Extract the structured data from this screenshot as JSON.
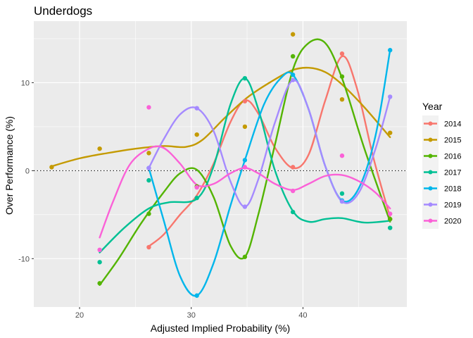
{
  "chart_data": {
    "type": "scatter",
    "title": "Underdogs",
    "xlabel": "Adjusted Implied Probability (%)",
    "ylabel": "Over Performance (%)",
    "xlim": [
      15.9,
      49.3
    ],
    "ylim": [
      -15.5,
      17.0
    ],
    "x_ticks": [
      20,
      30,
      40
    ],
    "y_ticks": [
      -10,
      0,
      10
    ],
    "x_minor_ticks": [
      25,
      35,
      45
    ],
    "y_minor_ticks": [
      -5,
      5,
      15
    ],
    "reference_line": {
      "y": 0,
      "style": "dotted"
    },
    "grid": true,
    "legend": {
      "title": "Year",
      "position": "right"
    },
    "series": [
      {
        "name": "2014",
        "color": "#F8766D",
        "points": [
          [
            26.2,
            -8.7
          ],
          [
            30.5,
            -1.8
          ],
          [
            34.8,
            7.9
          ],
          [
            39.1,
            0.4
          ],
          [
            43.5,
            13.3
          ],
          [
            47.8,
            -5.5
          ]
        ],
        "fit": [
          [
            26.2,
            -8.6
          ],
          [
            27.5,
            -7.3
          ],
          [
            29.0,
            -5.0
          ],
          [
            30.5,
            -2.8
          ],
          [
            32.0,
            0.8
          ],
          [
            33.5,
            5.5
          ],
          [
            34.8,
            8.0
          ],
          [
            36.0,
            6.5
          ],
          [
            37.5,
            2.6
          ],
          [
            39.1,
            0.3
          ],
          [
            40.5,
            1.8
          ],
          [
            42.0,
            8.0
          ],
          [
            43.5,
            13.0
          ],
          [
            44.8,
            9.5
          ],
          [
            46.3,
            1.5
          ],
          [
            47.8,
            -5.3
          ]
        ]
      },
      {
        "name": "2015",
        "color": "#C49A00",
        "points": [
          [
            17.5,
            0.4
          ],
          [
            21.8,
            2.5
          ],
          [
            26.2,
            2.0
          ],
          [
            30.5,
            4.1
          ],
          [
            34.8,
            5.0
          ],
          [
            39.1,
            15.5
          ],
          [
            43.5,
            8.1
          ],
          [
            47.8,
            4.3
          ]
        ],
        "fit": [
          [
            17.5,
            0.5
          ],
          [
            20.0,
            1.4
          ],
          [
            22.5,
            2.0
          ],
          [
            25.0,
            2.5
          ],
          [
            27.5,
            2.8
          ],
          [
            29.5,
            2.7
          ],
          [
            31.0,
            3.5
          ],
          [
            33.0,
            6.0
          ],
          [
            35.0,
            8.3
          ],
          [
            37.0,
            10.0
          ],
          [
            39.0,
            11.4
          ],
          [
            40.5,
            11.7
          ],
          [
            42.0,
            11.2
          ],
          [
            43.5,
            9.8
          ],
          [
            45.5,
            7.2
          ],
          [
            47.8,
            3.8
          ]
        ]
      },
      {
        "name": "2016",
        "color": "#53B400",
        "points": [
          [
            21.8,
            -12.8
          ],
          [
            26.2,
            -4.9
          ],
          [
            30.5,
            -1.8
          ],
          [
            34.8,
            -9.8
          ],
          [
            39.1,
            13.0
          ],
          [
            43.5,
            10.7
          ],
          [
            47.8,
            -5.5
          ]
        ],
        "fit": [
          [
            21.8,
            -13.0
          ],
          [
            23.5,
            -10.0
          ],
          [
            25.5,
            -6.0
          ],
          [
            27.5,
            -2.5
          ],
          [
            29.0,
            -0.3
          ],
          [
            30.5,
            0.1
          ],
          [
            32.0,
            -3.0
          ],
          [
            33.5,
            -8.5
          ],
          [
            34.8,
            -9.8
          ],
          [
            36.0,
            -5.0
          ],
          [
            37.5,
            3.0
          ],
          [
            39.1,
            11.5
          ],
          [
            40.5,
            14.5
          ],
          [
            42.0,
            14.5
          ],
          [
            43.5,
            10.5
          ],
          [
            45.5,
            2.5
          ],
          [
            47.8,
            -5.8
          ]
        ]
      },
      {
        "name": "2017",
        "color": "#00C094",
        "points": [
          [
            21.8,
            -10.4
          ],
          [
            26.2,
            -1.1
          ],
          [
            30.5,
            -3.1
          ],
          [
            34.8,
            10.5
          ],
          [
            39.1,
            -4.7
          ],
          [
            43.5,
            -2.6
          ],
          [
            47.8,
            -6.5
          ]
        ],
        "fit": [
          [
            21.8,
            -9.3
          ],
          [
            24.0,
            -6.5
          ],
          [
            26.2,
            -4.3
          ],
          [
            28.0,
            -3.6
          ],
          [
            30.5,
            -3.2
          ],
          [
            32.0,
            0.5
          ],
          [
            33.5,
            7.5
          ],
          [
            34.8,
            10.5
          ],
          [
            36.0,
            7.0
          ],
          [
            37.5,
            0.0
          ],
          [
            39.1,
            -4.6
          ],
          [
            40.5,
            -5.8
          ],
          [
            42.0,
            -5.5
          ],
          [
            43.5,
            -5.4
          ],
          [
            45.5,
            -5.9
          ],
          [
            47.8,
            -5.7
          ]
        ]
      },
      {
        "name": "2018",
        "color": "#00B6EB",
        "points": [
          [
            26.2,
            0.3
          ],
          [
            30.5,
            -14.2
          ],
          [
            34.8,
            1.2
          ],
          [
            39.1,
            10.9
          ],
          [
            43.5,
            -3.4
          ],
          [
            47.8,
            13.7
          ]
        ],
        "fit": [
          [
            26.2,
            0.3
          ],
          [
            27.5,
            -5.5
          ],
          [
            29.0,
            -12.0
          ],
          [
            30.5,
            -14.2
          ],
          [
            32.0,
            -10.5
          ],
          [
            33.5,
            -4.0
          ],
          [
            34.8,
            1.2
          ],
          [
            36.5,
            7.5
          ],
          [
            38.0,
            10.5
          ],
          [
            39.1,
            10.9
          ],
          [
            40.5,
            7.0
          ],
          [
            42.0,
            0.5
          ],
          [
            43.5,
            -3.4
          ],
          [
            45.0,
            -2.0
          ],
          [
            46.5,
            4.0
          ],
          [
            47.8,
            13.7
          ]
        ]
      },
      {
        "name": "2019",
        "color": "#A58AFF",
        "points": [
          [
            26.2,
            0.3
          ],
          [
            30.5,
            7.1
          ],
          [
            34.8,
            -4.1
          ],
          [
            39.1,
            10.3
          ],
          [
            43.5,
            -3.5
          ],
          [
            47.8,
            8.4
          ]
        ],
        "fit": [
          [
            26.2,
            0.3
          ],
          [
            27.5,
            3.5
          ],
          [
            29.0,
            6.4
          ],
          [
            30.5,
            7.1
          ],
          [
            32.0,
            4.5
          ],
          [
            33.5,
            -1.2
          ],
          [
            34.8,
            -4.1
          ],
          [
            36.0,
            -1.0
          ],
          [
            37.5,
            5.5
          ],
          [
            39.1,
            10.3
          ],
          [
            40.5,
            7.0
          ],
          [
            42.0,
            0.5
          ],
          [
            43.5,
            -3.5
          ],
          [
            45.0,
            -2.5
          ],
          [
            46.5,
            2.5
          ],
          [
            47.8,
            8.4
          ]
        ]
      },
      {
        "name": "2020",
        "color": "#FB61D7",
        "points": [
          [
            21.8,
            -9.0
          ],
          [
            26.2,
            7.2
          ],
          [
            30.5,
            -1.9
          ],
          [
            34.8,
            0.4
          ],
          [
            39.1,
            -2.3
          ],
          [
            43.5,
            1.7
          ],
          [
            47.8,
            -4.9
          ]
        ],
        "fit": [
          [
            21.8,
            -7.6
          ],
          [
            23.0,
            -3.5
          ],
          [
            24.5,
            0.7
          ],
          [
            26.2,
            2.5
          ],
          [
            27.5,
            2.6
          ],
          [
            29.0,
            0.8
          ],
          [
            30.5,
            -1.6
          ],
          [
            32.0,
            -1.5
          ],
          [
            33.5,
            -0.3
          ],
          [
            34.8,
            0.3
          ],
          [
            36.0,
            -0.3
          ],
          [
            37.5,
            -1.5
          ],
          [
            39.1,
            -2.2
          ],
          [
            40.5,
            -1.5
          ],
          [
            42.0,
            -0.6
          ],
          [
            43.5,
            -0.5
          ],
          [
            45.0,
            -1.2
          ],
          [
            46.5,
            -2.5
          ],
          [
            47.8,
            -4.3
          ]
        ]
      }
    ]
  }
}
